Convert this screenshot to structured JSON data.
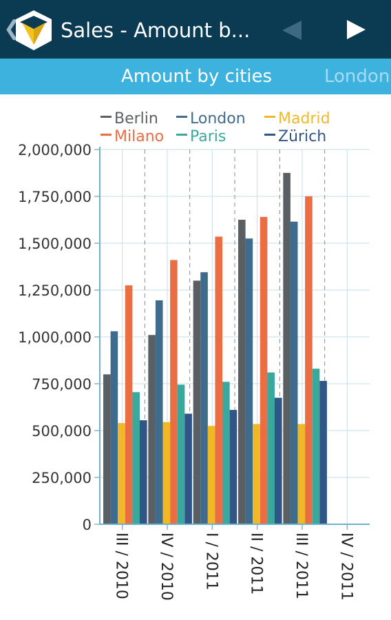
{
  "appbar": {
    "back_icon": "chevron-left-icon",
    "logo_icon": "app-logo-icon",
    "title": "Sales - Amount b...",
    "prev_icon": "play-left-icon",
    "next_icon": "play-right-icon",
    "colors": {
      "background": "#0b3b52",
      "logo_yellow": "#f4c21f",
      "prev_disabled": "#3d6a80"
    }
  },
  "tabs": {
    "active": "Amount by cities",
    "next": "London",
    "colors": {
      "background": "#3eb2df"
    }
  },
  "chart_data": {
    "type": "bar",
    "categories": [
      "III / 2010",
      "IV / 2010",
      "I / 2011",
      "II / 2011",
      "III / 2011",
      "IV / 2011"
    ],
    "series": [
      {
        "name": "Berlin",
        "color": "#5a5f63",
        "values": [
          800000,
          1010000,
          1300000,
          1625000,
          1875000,
          null
        ]
      },
      {
        "name": "London",
        "color": "#3f6b8c",
        "values": [
          1030000,
          1195000,
          1345000,
          1525000,
          1615000,
          null
        ]
      },
      {
        "name": "Madrid",
        "color": "#f0b826",
        "values": [
          540000,
          545000,
          525000,
          535000,
          535000,
          null
        ]
      },
      {
        "name": "Milano",
        "color": "#eb6d44",
        "values": [
          1275000,
          1410000,
          1535000,
          1640000,
          1750000,
          null
        ]
      },
      {
        "name": "Paris",
        "color": "#3aa89c",
        "values": [
          705000,
          745000,
          760000,
          810000,
          830000,
          null
        ]
      },
      {
        "name": "Zürich",
        "color": "#2f5687",
        "values": [
          555000,
          590000,
          610000,
          675000,
          765000,
          null
        ]
      }
    ],
    "y_ticks": [
      "0",
      "250,000",
      "500,000",
      "750,000",
      "1,000,000",
      "1,250,000",
      "1,500,000",
      "1,750,000",
      "2,000,000"
    ],
    "ylim": [
      0,
      2000000
    ],
    "grid": true,
    "legend_position": "top"
  }
}
